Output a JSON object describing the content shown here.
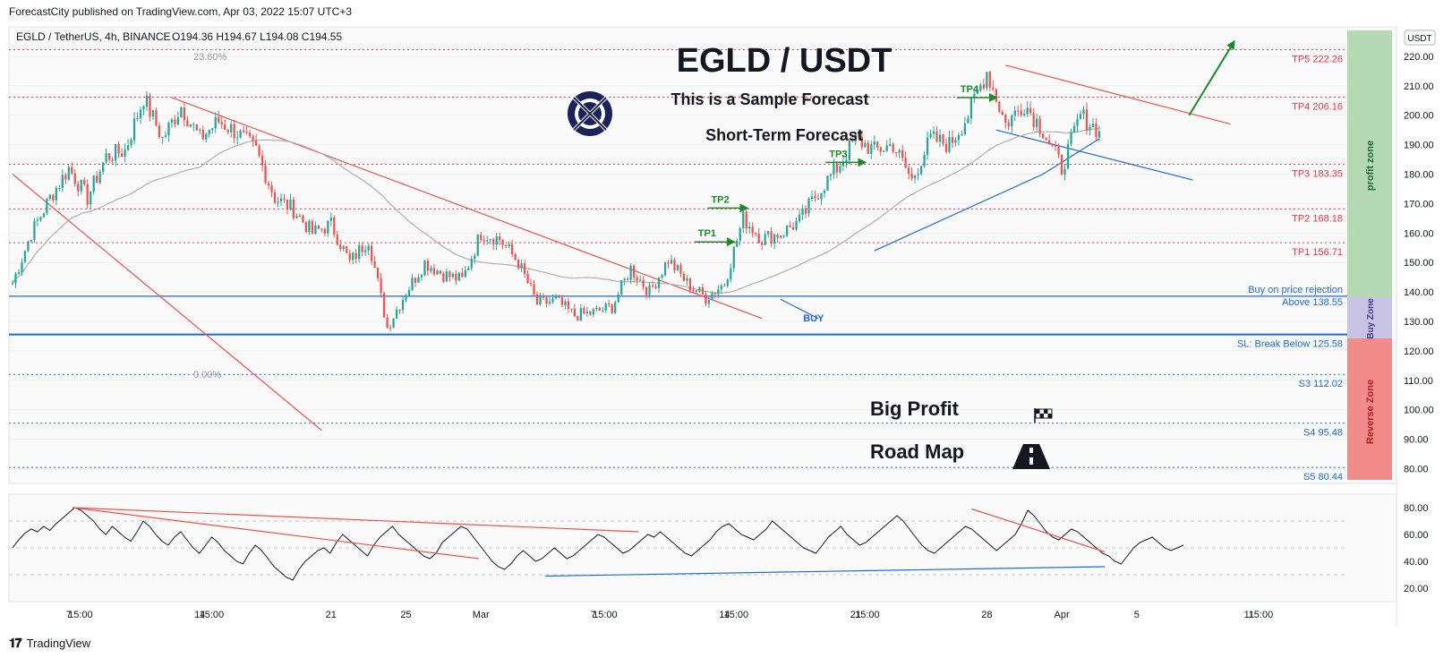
{
  "header": {
    "published": "ForecastCity published on TradingView.com, Apr 03, 2022 15:07 UTC+3"
  },
  "footer": {
    "brand": "TradingView",
    "logo_icon": "tradingview-logo-icon"
  },
  "symbol_line": {
    "symbol": "EGLD / TetherUS, 4h, BINANCE",
    "ohlc": "O194.36  H194.67  L194.08  C194.55"
  },
  "currency_badge": "USDT",
  "overlay": {
    "title": "EGLD / USDT",
    "sample": "This is a Sample Forecast",
    "term": "Short-Term Forecast",
    "big_profit": "Big Profit",
    "road_map": "Road Map",
    "logo_icon": "elrond-logo-icon",
    "flag_icon": "checkered-flag-icon",
    "road_icon": "road-icon"
  },
  "fib": {
    "top": "23.60%",
    "bottom": "0.00%"
  },
  "zones": {
    "profit": "profit zone",
    "buy": "Buy Zone",
    "reverse": "Reverse Zone"
  },
  "colors": {
    "up": "#26a69a",
    "down": "#ef5350",
    "target": "#f23645",
    "support": "#1e6bd6",
    "arrow": "#1b8a2e",
    "profit_zone": "#b5d9b5",
    "buy_zone": "#c9c3e6",
    "reverse_zone": "#f28b8b",
    "ma": "#b0b0b0"
  },
  "chart_data": [
    {
      "type": "candlestick",
      "title": "EGLD / TetherUS, 4h, BINANCE",
      "ylim": [
        75,
        230
      ],
      "yticks": [
        80,
        90,
        100,
        110,
        120,
        130,
        140,
        150,
        160,
        170,
        180,
        190,
        200,
        210,
        220
      ],
      "xticks": [
        "7",
        "15:00",
        "14",
        "15:00",
        "21",
        "25",
        "Mar",
        "7",
        "15:00",
        "14",
        "15:00",
        "21",
        "15:00",
        "28",
        "Apr",
        "5",
        "11",
        "15:00"
      ],
      "x_range": "Feb 4, 2022 to Apr 16, 2022 (4h bars)",
      "close_path": [
        {
          "date": "Feb 04",
          "price": 143
        },
        {
          "date": "Feb 05",
          "price": 160
        },
        {
          "date": "Feb 06",
          "price": 172
        },
        {
          "date": "Feb 07",
          "price": 182
        },
        {
          "date": "Feb 08",
          "price": 172
        },
        {
          "date": "Feb 09",
          "price": 186
        },
        {
          "date": "Feb 10",
          "price": 188
        },
        {
          "date": "Feb 11",
          "price": 206
        },
        {
          "date": "Feb 12",
          "price": 192
        },
        {
          "date": "Feb 13",
          "price": 203
        },
        {
          "date": "Feb 14",
          "price": 192
        },
        {
          "date": "Feb 15",
          "price": 198
        },
        {
          "date": "Feb 16",
          "price": 194
        },
        {
          "date": "Feb 17",
          "price": 188
        },
        {
          "date": "Feb 18",
          "price": 172
        },
        {
          "date": "Feb 19",
          "price": 168
        },
        {
          "date": "Feb 20",
          "price": 160
        },
        {
          "date": "Feb 21",
          "price": 163
        },
        {
          "date": "Feb 22",
          "price": 150
        },
        {
          "date": "Feb 23",
          "price": 158
        },
        {
          "date": "Feb 24",
          "price": 128
        },
        {
          "date": "Feb 25",
          "price": 140
        },
        {
          "date": "Feb 26",
          "price": 150
        },
        {
          "date": "Feb 27",
          "price": 146
        },
        {
          "date": "Feb 28",
          "price": 144
        },
        {
          "date": "Mar 01",
          "price": 160
        },
        {
          "date": "Mar 02",
          "price": 158
        },
        {
          "date": "Mar 03",
          "price": 150
        },
        {
          "date": "Mar 04",
          "price": 136
        },
        {
          "date": "Mar 05",
          "price": 137
        },
        {
          "date": "Mar 06",
          "price": 132
        },
        {
          "date": "Mar 07",
          "price": 133
        },
        {
          "date": "Mar 08",
          "price": 135
        },
        {
          "date": "Mar 09",
          "price": 148
        },
        {
          "date": "Mar 10",
          "price": 140
        },
        {
          "date": "Mar 11",
          "price": 151
        },
        {
          "date": "Mar 12",
          "price": 143
        },
        {
          "date": "Mar 13",
          "price": 138
        },
        {
          "date": "Mar 14",
          "price": 143
        },
        {
          "date": "Mar 15",
          "price": 165
        },
        {
          "date": "Mar 16",
          "price": 158
        },
        {
          "date": "Mar 17",
          "price": 160
        },
        {
          "date": "Mar 18",
          "price": 164
        },
        {
          "date": "Mar 19",
          "price": 174
        },
        {
          "date": "Mar 20",
          "price": 182
        },
        {
          "date": "Mar 21",
          "price": 192
        },
        {
          "date": "Mar 22",
          "price": 188
        },
        {
          "date": "Mar 23",
          "price": 190
        },
        {
          "date": "Mar 24",
          "price": 178
        },
        {
          "date": "Mar 25",
          "price": 192
        },
        {
          "date": "Mar 26",
          "price": 190
        },
        {
          "date": "Mar 27",
          "price": 200
        },
        {
          "date": "Mar 28",
          "price": 215
        },
        {
          "date": "Mar 29",
          "price": 197
        },
        {
          "date": "Mar 30",
          "price": 204
        },
        {
          "date": "Mar 31",
          "price": 195
        },
        {
          "date": "Apr 01",
          "price": 182
        },
        {
          "date": "Apr 02",
          "price": 200
        },
        {
          "date": "Apr 03",
          "price": 194.55
        }
      ],
      "levels": [
        {
          "label": "TP5 222.26",
          "value": 222.26
        },
        {
          "label": "TP4 206.16",
          "value": 206.16
        },
        {
          "label": "TP3 183.35",
          "value": 183.35
        },
        {
          "label": "TP2 168.18",
          "value": 168.18
        },
        {
          "label": "TP1 156.71",
          "value": 156.71
        },
        {
          "label": "Buy on price rejection",
          "label2": "Above 138.55",
          "value": 138.55
        },
        {
          "label": "SL: Break Below 125.58",
          "value": 125.58
        },
        {
          "label": "S3 112.02",
          "value": 112.02
        },
        {
          "label": "S4 95.48",
          "value": 95.48
        },
        {
          "label": "S5 80.44",
          "value": 80.44
        }
      ],
      "annotations": [
        "TP1",
        "TP2",
        "TP3",
        "TP4",
        "BUY"
      ],
      "indicators": [
        "moving average (grey)"
      ]
    },
    {
      "type": "line",
      "title": "",
      "ylim": [
        10,
        90
      ],
      "yticks": [
        20,
        40,
        60,
        80
      ],
      "guide_lines": [
        30,
        50,
        70
      ],
      "series": [
        {
          "values": [
            50,
            56,
            61,
            64,
            62,
            66,
            63,
            68,
            72,
            76,
            80,
            78,
            74,
            70,
            64,
            60,
            66,
            62,
            58,
            55,
            62,
            70,
            66,
            60,
            55,
            52,
            58,
            62,
            56,
            50,
            46,
            52,
            58,
            54,
            48,
            44,
            40,
            38,
            46,
            52,
            48,
            42,
            36,
            32,
            28,
            26,
            34,
            40,
            44,
            48,
            50,
            46,
            54,
            60,
            56,
            52,
            48,
            44,
            52,
            58,
            62,
            66,
            60,
            56,
            52,
            48,
            44,
            42,
            46,
            54,
            58,
            62,
            66,
            64,
            58,
            52,
            46,
            40,
            36,
            34,
            38,
            44,
            48,
            44,
            40,
            42,
            46,
            50,
            46,
            42,
            44,
            48,
            52,
            56,
            60,
            58,
            54,
            50,
            46,
            48,
            52,
            56,
            60,
            58,
            62,
            58,
            54,
            50,
            46,
            44,
            48,
            52,
            56,
            62,
            66,
            68,
            64,
            60,
            58,
            56,
            60,
            64,
            70,
            66,
            62,
            58,
            54,
            50,
            48,
            46,
            52,
            58,
            62,
            66,
            60,
            56,
            52,
            54,
            58,
            62,
            66,
            70,
            74,
            70,
            64,
            58,
            52,
            48,
            46,
            50,
            54,
            58,
            62,
            66,
            64,
            60,
            56,
            52,
            48,
            52,
            56,
            60,
            68,
            78,
            74,
            68,
            62,
            58,
            56,
            60,
            64,
            62,
            58,
            54,
            50,
            46,
            44,
            40,
            38,
            44,
            50,
            54,
            56,
            58,
            54,
            50,
            48,
            50,
            52
          ]
        }
      ],
      "trendlines": [
        {
          "color": "red",
          "from": [
            0.045,
            80
          ],
          "to": [
            0.47,
            62
          ]
        },
        {
          "color": "red",
          "from": [
            0.045,
            80
          ],
          "to": [
            0.35,
            42
          ]
        },
        {
          "color": "red",
          "from": [
            0.72,
            79
          ],
          "to": [
            0.82,
            47
          ]
        },
        {
          "color": "blue",
          "from": [
            0.4,
            29
          ],
          "to": [
            0.82,
            36
          ]
        }
      ]
    }
  ]
}
